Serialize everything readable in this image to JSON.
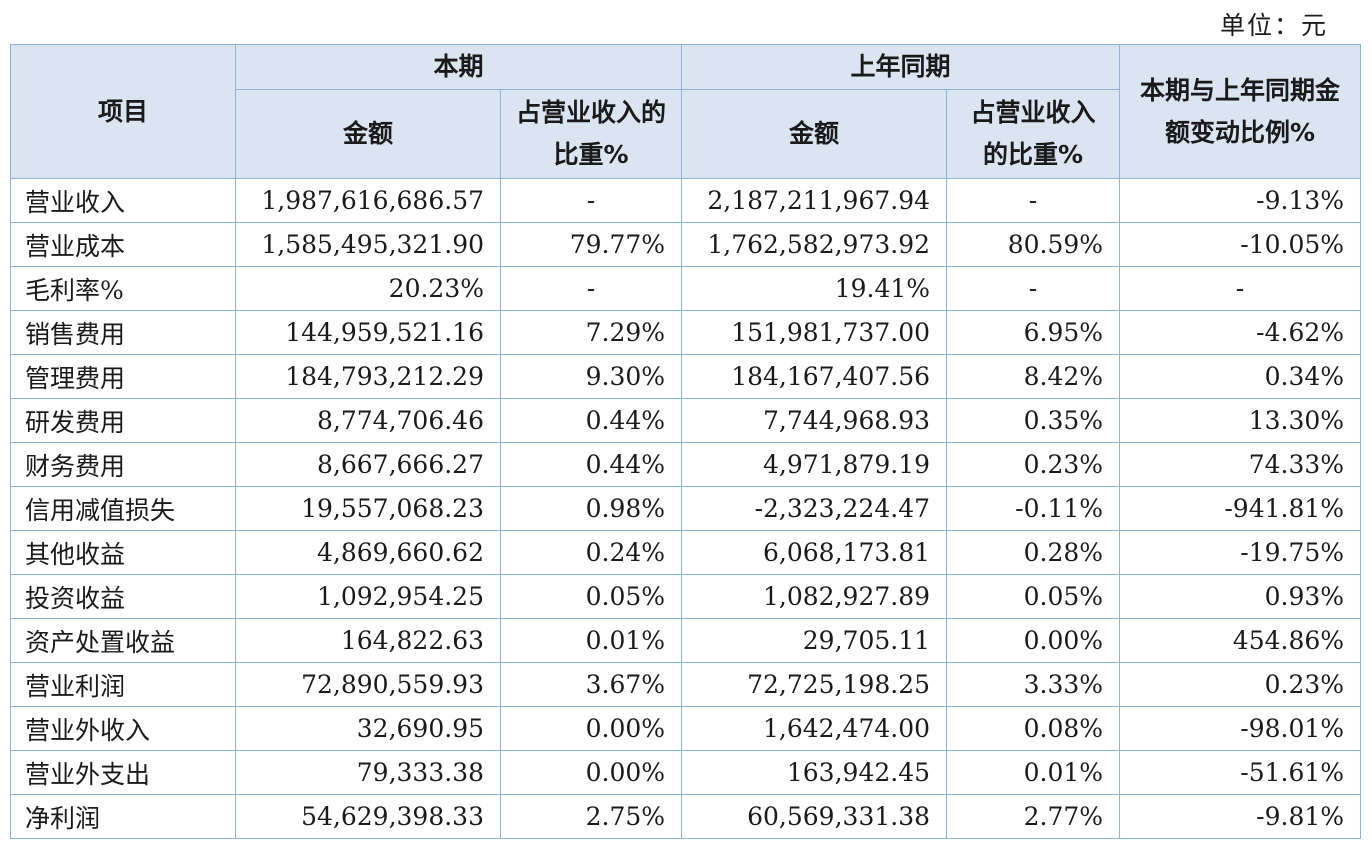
{
  "unit_label": "单位：元",
  "headers": {
    "item": "项目",
    "current_period": "本期",
    "prior_period": "上年同期",
    "change": "本期与上年同期金额变动比例%",
    "amount": "金额",
    "ratio_current": "占营业收入的比重%",
    "ratio_prior": "占营业收入的比重%"
  },
  "rows": [
    {
      "item": "营业收入",
      "cur_amount": "1,987,616,686.57",
      "cur_ratio": "-",
      "prior_amount": "2,187,211,967.94",
      "prior_ratio": "-",
      "change": "-9.13%"
    },
    {
      "item": "营业成本",
      "cur_amount": "1,585,495,321.90",
      "cur_ratio": "79.77%",
      "prior_amount": "1,762,582,973.92",
      "prior_ratio": "80.59%",
      "change": "-10.05%"
    },
    {
      "item": "毛利率%",
      "cur_amount": "20.23%",
      "cur_ratio": "-",
      "prior_amount": "19.41%",
      "prior_ratio": "-",
      "change": "-"
    },
    {
      "item": "销售费用",
      "cur_amount": "144,959,521.16",
      "cur_ratio": "7.29%",
      "prior_amount": "151,981,737.00",
      "prior_ratio": "6.95%",
      "change": "-4.62%"
    },
    {
      "item": "管理费用",
      "cur_amount": "184,793,212.29",
      "cur_ratio": "9.30%",
      "prior_amount": "184,167,407.56",
      "prior_ratio": "8.42%",
      "change": "0.34%"
    },
    {
      "item": "研发费用",
      "cur_amount": "8,774,706.46",
      "cur_ratio": "0.44%",
      "prior_amount": "7,744,968.93",
      "prior_ratio": "0.35%",
      "change": "13.30%"
    },
    {
      "item": "财务费用",
      "cur_amount": "8,667,666.27",
      "cur_ratio": "0.44%",
      "prior_amount": "4,971,879.19",
      "prior_ratio": "0.23%",
      "change": "74.33%"
    },
    {
      "item": "信用减值损失",
      "cur_amount": "19,557,068.23",
      "cur_ratio": "0.98%",
      "prior_amount": "-2,323,224.47",
      "prior_ratio": "-0.11%",
      "change": "-941.81%"
    },
    {
      "item": "其他收益",
      "cur_amount": "4,869,660.62",
      "cur_ratio": "0.24%",
      "prior_amount": "6,068,173.81",
      "prior_ratio": "0.28%",
      "change": "-19.75%"
    },
    {
      "item": "投资收益",
      "cur_amount": "1,092,954.25",
      "cur_ratio": "0.05%",
      "prior_amount": "1,082,927.89",
      "prior_ratio": "0.05%",
      "change": "0.93%"
    },
    {
      "item": "资产处置收益",
      "cur_amount": "164,822.63",
      "cur_ratio": "0.01%",
      "prior_amount": "29,705.11",
      "prior_ratio": "0.00%",
      "change": "454.86%"
    },
    {
      "item": "营业利润",
      "cur_amount": "72,890,559.93",
      "cur_ratio": "3.67%",
      "prior_amount": "72,725,198.25",
      "prior_ratio": "3.33%",
      "change": "0.23%"
    },
    {
      "item": "营业外收入",
      "cur_amount": "32,690.95",
      "cur_ratio": "0.00%",
      "prior_amount": "1,642,474.00",
      "prior_ratio": "0.08%",
      "change": "-98.01%"
    },
    {
      "item": "营业外支出",
      "cur_amount": "79,333.38",
      "cur_ratio": "0.00%",
      "prior_amount": "163,942.45",
      "prior_ratio": "0.01%",
      "change": "-51.61%"
    },
    {
      "item": "净利润",
      "cur_amount": "54,629,398.33",
      "cur_ratio": "2.75%",
      "prior_amount": "60,569,331.38",
      "prior_ratio": "2.77%",
      "change": "-9.81%"
    }
  ]
}
